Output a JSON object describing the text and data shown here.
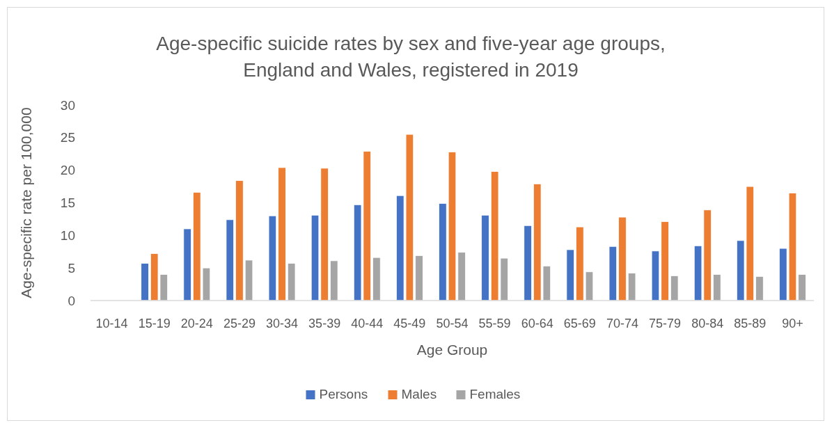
{
  "chart_data": {
    "type": "bar",
    "title": "Age-specific suicide rates by sex and five-year age groups, England and Wales, registered in 2019",
    "xlabel": "Age Group",
    "ylabel": "Age-specific rate per 100,000",
    "categories": [
      "10-14",
      "15-19",
      "20-24",
      "25-29",
      "30-34",
      "35-39",
      "40-44",
      "45-49",
      "50-54",
      "55-59",
      "60-64",
      "65-69",
      "70-74",
      "75-79",
      "80-84",
      "85-89",
      "90+"
    ],
    "series": [
      {
        "name": "Persons",
        "color": "#4472c4",
        "values": [
          null,
          5.7,
          11.0,
          12.4,
          13.0,
          13.1,
          14.7,
          16.1,
          14.9,
          13.1,
          11.5,
          7.8,
          8.3,
          7.6,
          8.4,
          9.2,
          8.0
        ]
      },
      {
        "name": "Males",
        "color": "#ed7d31",
        "values": [
          null,
          7.2,
          16.6,
          18.4,
          20.4,
          20.3,
          22.9,
          25.5,
          22.8,
          19.8,
          17.9,
          11.3,
          12.8,
          12.1,
          13.9,
          17.5,
          16.5
        ]
      },
      {
        "name": "Females",
        "color": "#a5a5a5",
        "values": [
          null,
          4.0,
          5.0,
          6.2,
          5.7,
          6.1,
          6.6,
          6.9,
          7.4,
          6.5,
          5.3,
          4.4,
          4.2,
          3.8,
          4.0,
          3.7,
          4.0
        ]
      }
    ],
    "ylim": [
      0,
      30
    ],
    "yticks": [
      0,
      5,
      10,
      15,
      20,
      25,
      30
    ],
    "legend": "bottom"
  }
}
